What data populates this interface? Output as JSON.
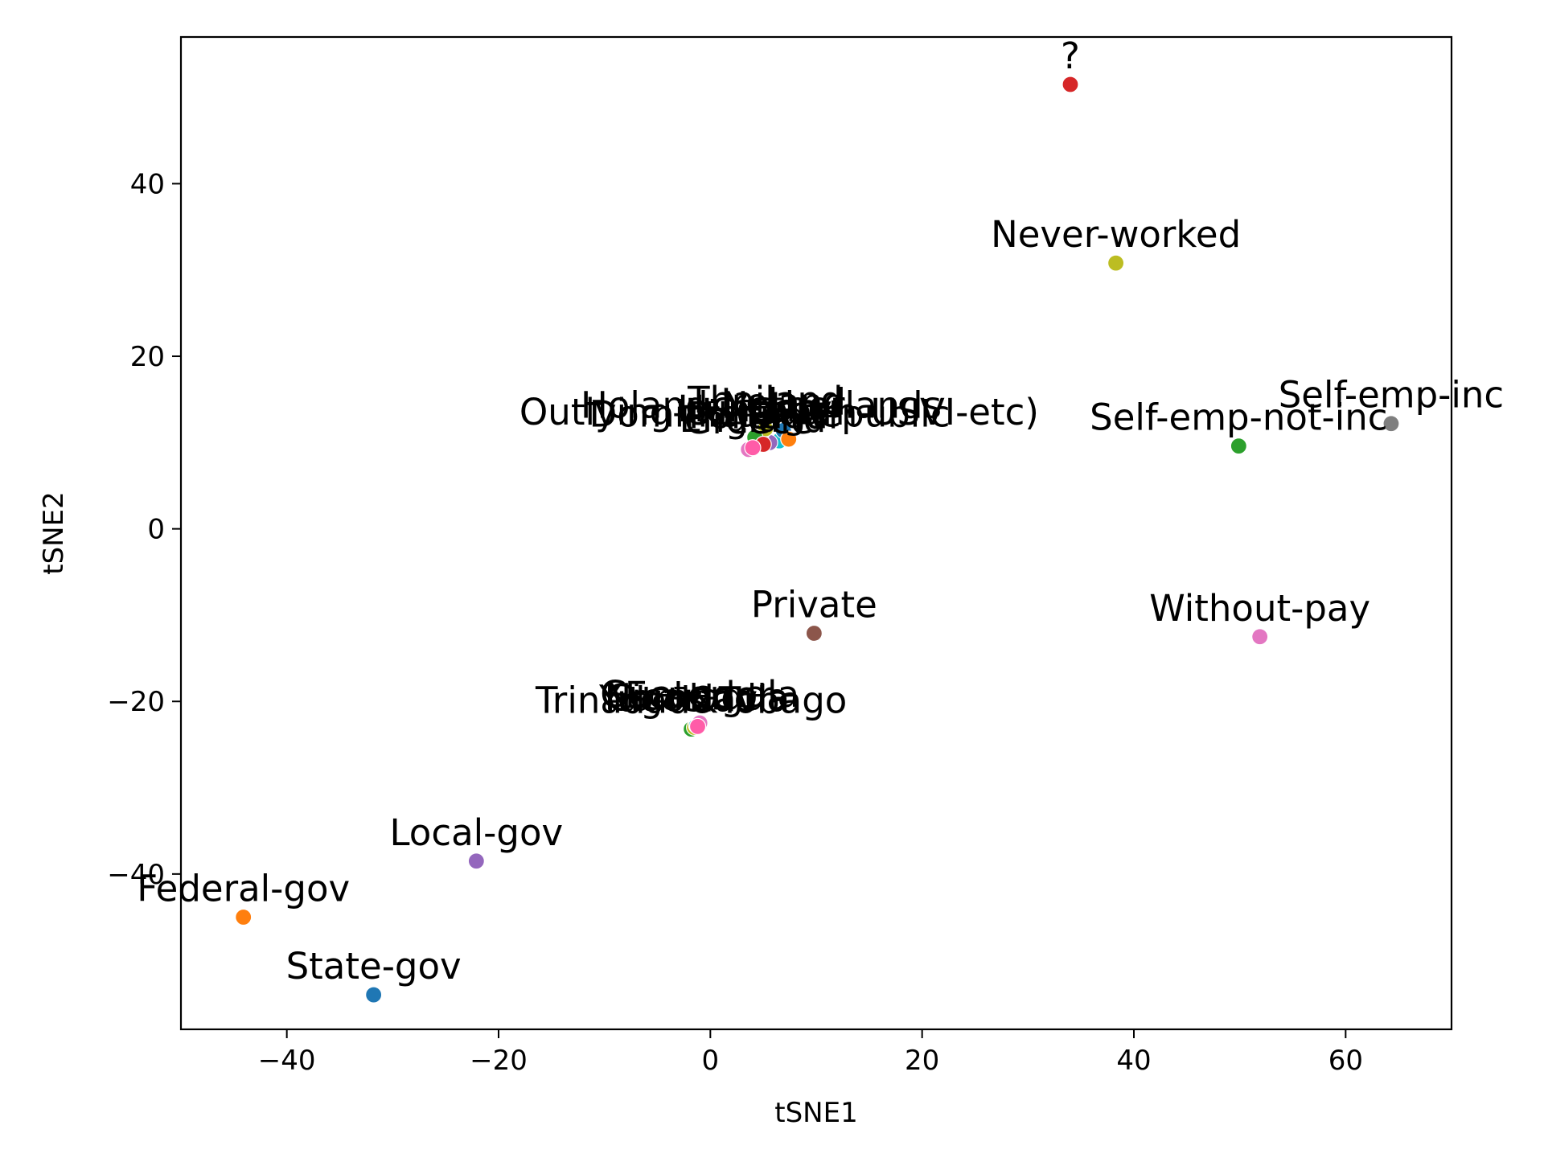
{
  "chart_data": {
    "type": "scatter",
    "title": "",
    "xlabel": "tSNE1",
    "ylabel": "tSNE2",
    "xlim": [
      -50,
      70
    ],
    "ylim": [
      -58,
      57
    ],
    "grid": false,
    "xticks": [
      -40,
      -20,
      0,
      20,
      40,
      60
    ],
    "yticks": [
      -40,
      -20,
      0,
      20,
      40
    ],
    "points": [
      {
        "label": "?",
        "x": 34.0,
        "y": 51.5,
        "color": "#d62728"
      },
      {
        "label": "Never-worked",
        "x": 38.3,
        "y": 30.8,
        "color": "#bcbd22"
      },
      {
        "label": "Self-emp-inc",
        "x": 64.3,
        "y": 12.2,
        "color": "#7f7f7f"
      },
      {
        "label": "Self-emp-not-inc",
        "x": 49.9,
        "y": 9.6,
        "color": "#2ca02c"
      },
      {
        "label": "Private",
        "x": 9.8,
        "y": -12.1,
        "color": "#8c564b"
      },
      {
        "label": "Without-pay",
        "x": 51.9,
        "y": -12.5,
        "color": "#e377c2"
      },
      {
        "label": "Local-gov",
        "x": -22.1,
        "y": -38.5,
        "color": "#9467bd"
      },
      {
        "label": "Federal-gov",
        "x": -44.1,
        "y": -45.0,
        "color": "#ff7f0e"
      },
      {
        "label": "State-gov",
        "x": -31.8,
        "y": -54.0,
        "color": "#1f77b4"
      },
      {
        "label": "Outlying-US(Guam-USVI-etc)",
        "x": 6.5,
        "y": 10.2,
        "color": "#17becf"
      },
      {
        "label": "Dominican-Republic",
        "x": 5.6,
        "y": 10.0,
        "color": "#9467bd"
      },
      {
        "label": "Holand-Netherlands",
        "x": 4.8,
        "y": 11.0,
        "color": "#8c564b"
      },
      {
        "label": "Thailand",
        "x": 5.2,
        "y": 11.6,
        "color": "#bcbd22"
      },
      {
        "label": "Hungary",
        "x": 4.2,
        "y": 10.6,
        "color": "#2ca02c"
      },
      {
        "label": "Ireland",
        "x": 6.9,
        "y": 11.4,
        "color": "#1f77b4"
      },
      {
        "label": "Laos",
        "x": 7.4,
        "y": 10.4,
        "color": "#ff7f0e"
      },
      {
        "label": "Greece",
        "x": 3.6,
        "y": 9.2,
        "color": "#e377c2"
      },
      {
        "label": "Portugal",
        "x": 5.0,
        "y": 9.8,
        "color": "#d62728"
      },
      {
        "label": "England",
        "x": 4.0,
        "y": 9.4,
        "color": "#ff5ca8"
      },
      {
        "label": "Trinadad&Tobago",
        "x": -1.8,
        "y": -23.2,
        "color": "#2ca02c"
      },
      {
        "label": "Yugoslavia",
        "x": -1.5,
        "y": -23.0,
        "color": "#bcbd22"
      },
      {
        "label": "Nicaragua",
        "x": -1.3,
        "y": -22.8,
        "color": "#17becf"
      },
      {
        "label": "Ecuador",
        "x": -1.1,
        "y": -22.6,
        "color": "#9467bd"
      },
      {
        "label": "Guatemala",
        "x": -1.0,
        "y": -22.5,
        "color": "#e377c2"
      },
      {
        "label": "Cambodia",
        "x": -1.2,
        "y": -22.9,
        "color": "#ff5ca8"
      }
    ]
  }
}
